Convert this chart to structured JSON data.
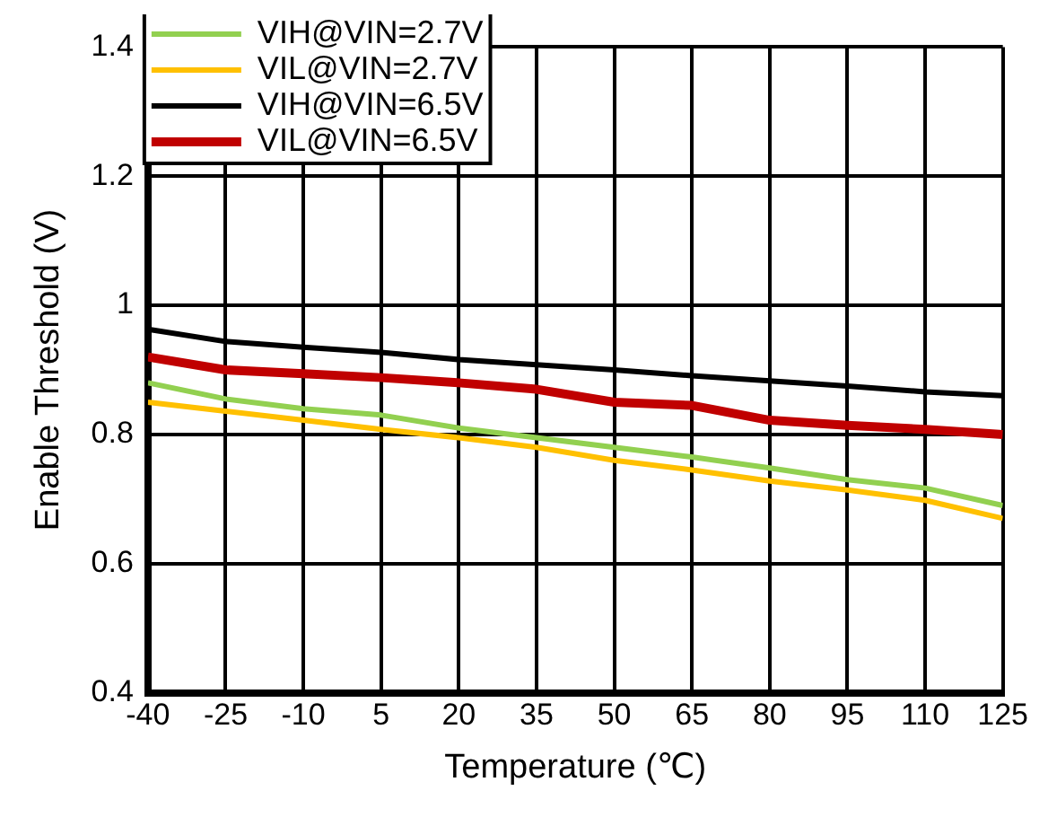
{
  "chart_data": {
    "type": "line",
    "xlabel": "Temperature (℃)",
    "ylabel": "Enable Threshold (V)",
    "x": [
      -40,
      -25,
      -10,
      5,
      20,
      35,
      50,
      65,
      80,
      95,
      110,
      125
    ],
    "xlim": [
      -40,
      125
    ],
    "xticks": [
      -40,
      -25,
      -10,
      5,
      20,
      35,
      50,
      65,
      80,
      95,
      110,
      125
    ],
    "ylim": [
      0.4,
      1.4
    ],
    "yticks": [
      0.4,
      0.6,
      0.8,
      1,
      1.2,
      1.4
    ],
    "grid": true,
    "legend": "top left",
    "marker": "none",
    "line_style": "solid",
    "series": [
      {
        "name": "VIH@VIN=2.7V",
        "color": "#92d050",
        "values": [
          0.88,
          0.855,
          0.84,
          0.83,
          0.81,
          0.795,
          0.78,
          0.765,
          0.748,
          0.73,
          0.717,
          0.69
        ]
      },
      {
        "name": "VIL@VIN=2.7V",
        "color": "#ffc000",
        "values": [
          0.85,
          0.836,
          0.822,
          0.808,
          0.795,
          0.78,
          0.76,
          0.745,
          0.728,
          0.714,
          0.698,
          0.67
        ]
      },
      {
        "name": "VIH@VIN=6.5V",
        "color": "#000000",
        "values": [
          0.963,
          0.944,
          0.935,
          0.927,
          0.916,
          0.908,
          0.9,
          0.891,
          0.883,
          0.875,
          0.866,
          0.86
        ]
      },
      {
        "name": "VIL@VIN=6.5V",
        "color": "#c00000",
        "values": [
          0.92,
          0.9,
          0.894,
          0.888,
          0.88,
          0.87,
          0.85,
          0.845,
          0.822,
          0.814,
          0.808,
          0.8
        ]
      }
    ]
  }
}
